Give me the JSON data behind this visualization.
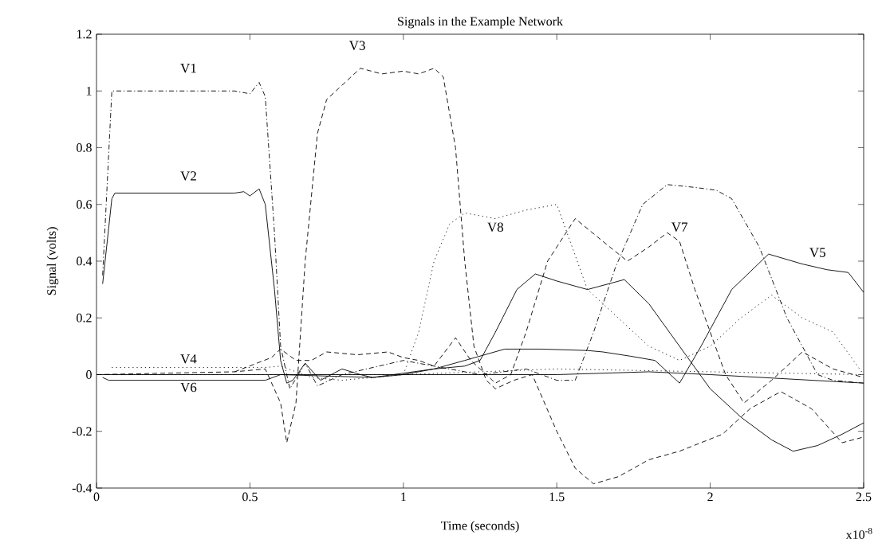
{
  "chart_data": {
    "type": "line",
    "title": "Signals in the Example Network",
    "xlabel": "Time (seconds)",
    "ylabel": "Signal (volts)",
    "annotations": [
      "x10$^{-8}$"
    ],
    "xlim": [
      0,
      2.5
    ],
    "xticks": [
      0,
      0.5,
      1,
      1.5,
      2,
      2.5
    ],
    "ylim": [
      -0.4,
      1.2
    ],
    "yticks": [
      -0.4,
      -0.2,
      0,
      0.2,
      0.4,
      0.6,
      0.8,
      1,
      1.2
    ],
    "grid": false,
    "legend": false,
    "marker": "none",
    "series": [
      {
        "name": "V1",
        "color": "#000000",
        "line_style": "dashdot",
        "x": [
          0.02,
          0.05,
          0.2,
          0.45,
          0.5,
          0.53,
          0.55,
          0.58,
          0.6,
          0.63,
          0.68,
          0.72,
          0.8,
          1.0,
          1.1,
          1.25,
          1.4,
          1.5,
          1.56,
          1.62,
          1.69,
          1.78,
          1.86,
          1.95,
          2.02,
          2.07,
          2.16,
          2.25,
          2.35,
          2.4,
          2.5
        ],
        "values": [
          0.35,
          1.0,
          1.0,
          1.0,
          0.99,
          1.03,
          0.98,
          0.5,
          0.1,
          -0.05,
          0.04,
          -0.04,
          0.0,
          0.05,
          0.03,
          0.0,
          0.02,
          -0.02,
          -0.02,
          0.15,
          0.375,
          0.6,
          0.67,
          0.66,
          0.65,
          0.62,
          0.45,
          0.2,
          0.0,
          -0.02,
          -0.03
        ]
      },
      {
        "name": "V2",
        "color": "#000000",
        "line_style": "solid",
        "x": [
          0.02,
          0.05,
          0.06,
          0.45,
          0.48,
          0.5,
          0.53,
          0.55,
          0.58,
          0.6,
          0.62,
          0.64,
          0.68,
          0.73,
          0.8,
          0.86,
          0.9,
          1.0,
          1.1,
          1.2,
          1.25,
          1.3,
          1.37,
          1.43,
          1.5,
          1.6,
          1.72,
          1.8,
          1.9,
          2.0,
          2.1,
          2.2,
          2.27,
          2.35,
          2.43,
          2.5
        ],
        "values": [
          0.32,
          0.62,
          0.64,
          0.64,
          0.645,
          0.63,
          0.655,
          0.6,
          0.3,
          0.05,
          -0.03,
          -0.02,
          0.04,
          -0.02,
          0.02,
          0.0,
          -0.01,
          0.0,
          0.02,
          0.03,
          0.05,
          0.15,
          0.3,
          0.355,
          0.33,
          0.3,
          0.335,
          0.25,
          0.1,
          -0.05,
          -0.15,
          -0.23,
          -0.27,
          -0.25,
          -0.21,
          -0.17
        ]
      },
      {
        "name": "V3",
        "color": "#000000",
        "line_style": "dashed",
        "x": [
          0.0,
          0.45,
          0.55,
          0.6,
          0.62,
          0.65,
          0.68,
          0.72,
          0.75,
          0.8,
          0.86,
          0.93,
          1.0,
          1.05,
          1.1,
          1.13,
          1.17,
          1.2,
          1.23,
          1.27,
          1.3,
          1.36,
          1.42,
          1.5,
          1.56,
          1.62,
          1.7,
          1.8,
          1.9,
          2.04,
          2.13,
          2.23,
          2.33,
          2.43,
          2.5
        ],
        "values": [
          0.0,
          0.01,
          0.02,
          -0.1,
          -0.24,
          -0.1,
          0.4,
          0.85,
          0.97,
          1.02,
          1.08,
          1.06,
          1.07,
          1.06,
          1.08,
          1.05,
          0.8,
          0.4,
          0.1,
          -0.02,
          -0.05,
          -0.02,
          0.0,
          -0.2,
          -0.33,
          -0.385,
          -0.36,
          -0.3,
          -0.27,
          -0.21,
          -0.12,
          -0.06,
          -0.12,
          -0.24,
          -0.22
        ]
      },
      {
        "name": "V4",
        "color": "#000000",
        "line_style": "dotted",
        "x": [
          0.05,
          0.3,
          0.55,
          0.6,
          0.7,
          0.8,
          1.0,
          1.5,
          2.0,
          2.5
        ],
        "values": [
          0.025,
          0.025,
          0.025,
          0.03,
          -0.01,
          -0.02,
          0.0,
          0.02,
          0.01,
          0.0
        ]
      },
      {
        "name": "V5",
        "color": "#000000",
        "line_style": "solid",
        "x": [
          0.0,
          0.6,
          0.9,
          1.1,
          1.2,
          1.33,
          1.45,
          1.6,
          1.65,
          1.74,
          1.82,
          1.9,
          1.97,
          2.07,
          2.19,
          2.3,
          2.38,
          2.45,
          2.5
        ],
        "values": [
          0.0,
          0.0,
          -0.01,
          0.02,
          0.05,
          0.09,
          0.09,
          0.085,
          0.08,
          0.065,
          0.05,
          -0.03,
          0.1,
          0.3,
          0.425,
          0.39,
          0.37,
          0.36,
          0.29
        ]
      },
      {
        "name": "V6",
        "color": "#000000",
        "line_style": "solid",
        "x": [
          0.02,
          0.04,
          0.55,
          0.6,
          1.0,
          1.5,
          1.8,
          2.0,
          2.5
        ],
        "values": [
          -0.01,
          -0.02,
          -0.02,
          0.0,
          0.0,
          0.0,
          0.01,
          0.0,
          -0.03
        ]
      },
      {
        "name": "V7",
        "color": "#000000",
        "line_style": "dashed",
        "x": [
          0.45,
          0.57,
          0.6,
          0.65,
          0.7,
          0.75,
          0.85,
          0.95,
          1.0,
          1.05,
          1.1,
          1.17,
          1.22,
          1.3,
          1.35,
          1.4,
          1.47,
          1.56,
          1.65,
          1.73,
          1.8,
          1.86,
          1.9,
          1.95,
          2.0,
          2.05,
          2.11,
          2.2,
          2.3,
          2.4,
          2.5
        ],
        "values": [
          0.01,
          0.06,
          0.09,
          0.05,
          0.05,
          0.08,
          0.07,
          0.08,
          0.06,
          0.05,
          0.03,
          0.13,
          0.05,
          -0.03,
          0.0,
          0.15,
          0.4,
          0.55,
          0.47,
          0.4,
          0.45,
          0.5,
          0.47,
          0.3,
          0.15,
          0.0,
          -0.1,
          -0.02,
          0.08,
          0.02,
          -0.01
        ]
      },
      {
        "name": "V8",
        "color": "#000000",
        "line_style": "dotted",
        "x": [
          0.0,
          0.9,
          1.0,
          1.05,
          1.1,
          1.15,
          1.2,
          1.3,
          1.4,
          1.5,
          1.55,
          1.6,
          1.7,
          1.8,
          1.9,
          2.0,
          2.1,
          2.2,
          2.3,
          2.4,
          2.5
        ],
        "values": [
          0.0,
          0.0,
          0.0,
          0.15,
          0.4,
          0.53,
          0.57,
          0.55,
          0.58,
          0.6,
          0.45,
          0.3,
          0.2,
          0.1,
          0.05,
          0.1,
          0.2,
          0.28,
          0.2,
          0.15,
          0.0
        ]
      }
    ]
  }
}
